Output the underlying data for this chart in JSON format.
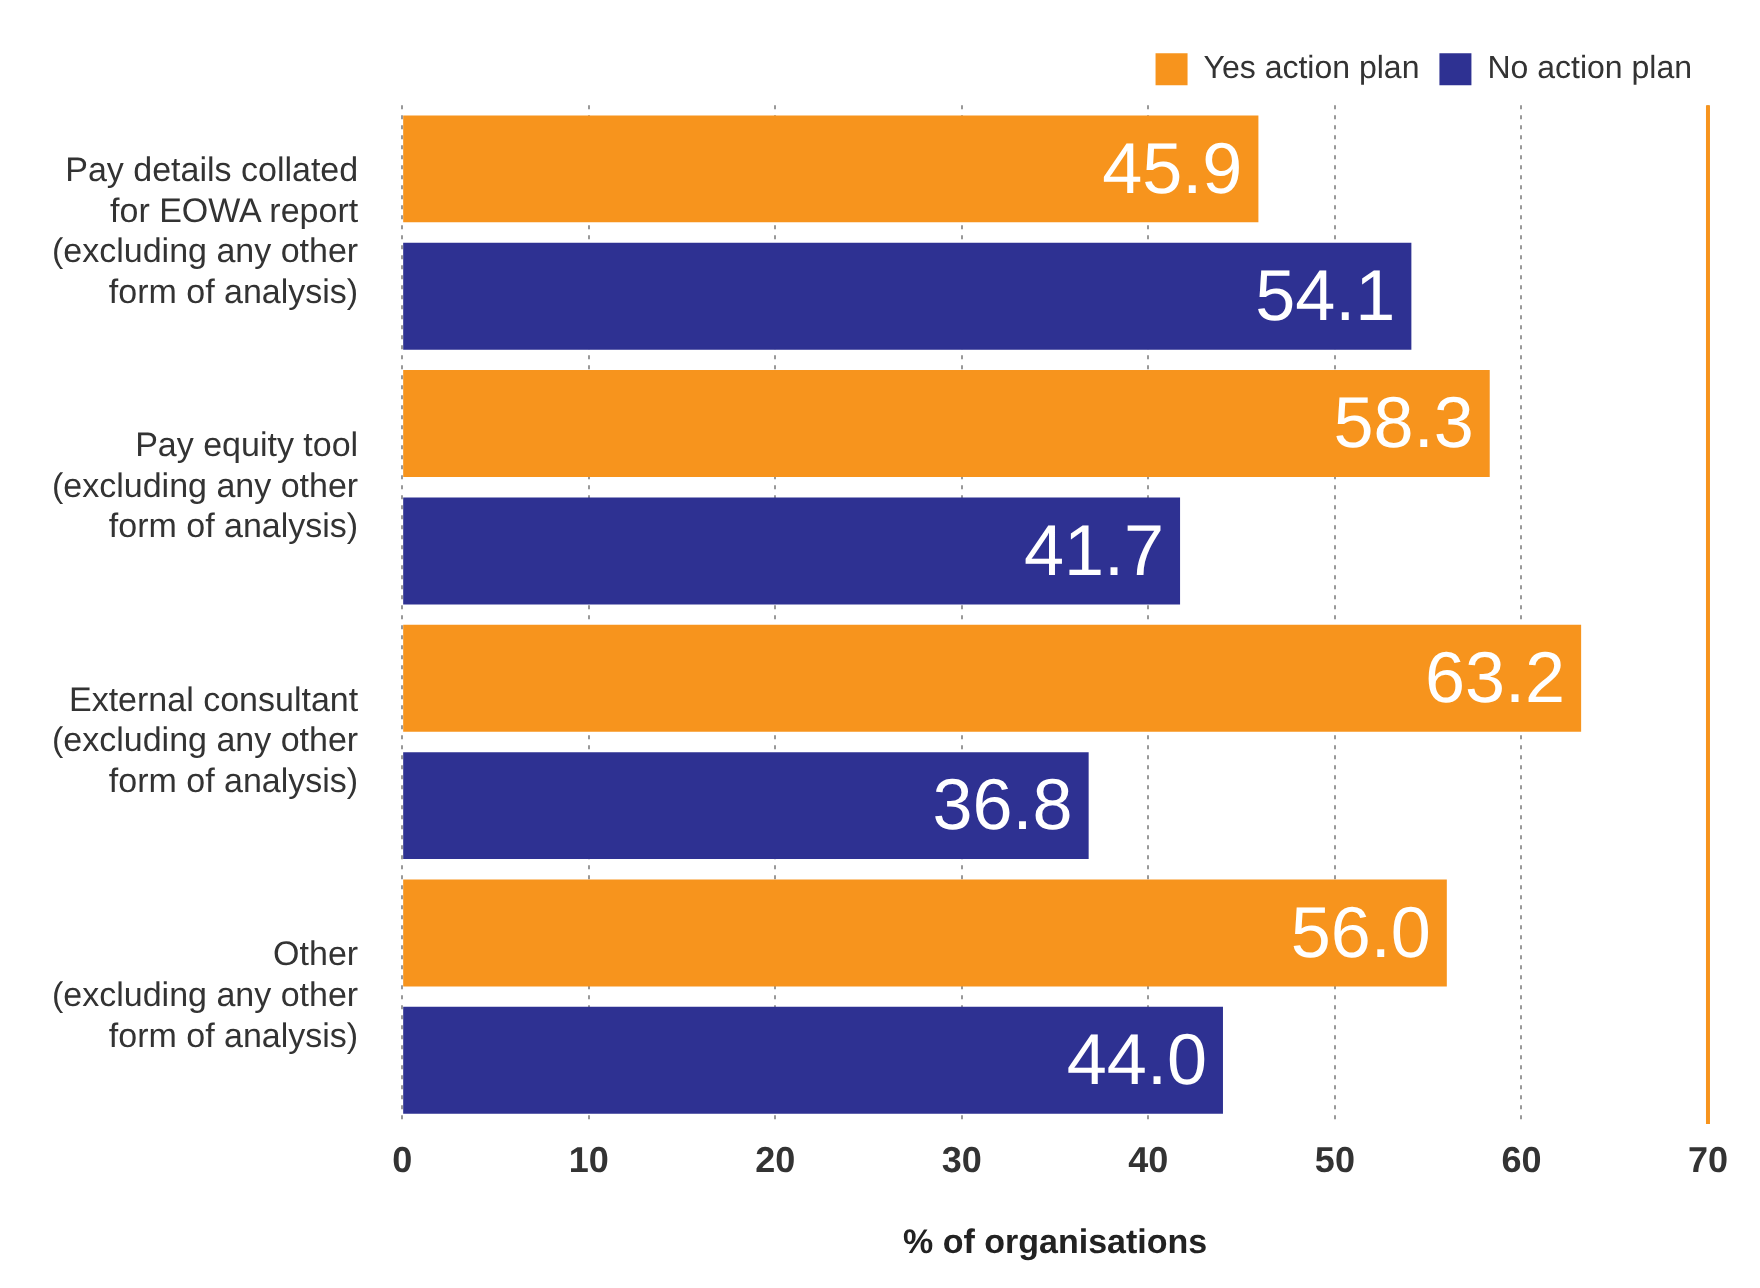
{
  "chart_data": {
    "type": "bar",
    "orientation": "horizontal",
    "categories": [
      "Pay details collated for EOWA report (excluding any other form of analysis)",
      "Pay equity tool (excluding any other form of analysis)",
      "External consultant (excluding any other form of analysis)",
      "Other (excluding any other form of analysis)"
    ],
    "series": [
      {
        "name": "Yes action plan",
        "color": "#f7941d",
        "values": [
          45.9,
          58.3,
          63.2,
          56.0
        ],
        "value_labels": [
          "45.9",
          "58.3",
          "63.2",
          "56.0"
        ]
      },
      {
        "name": "No action plan",
        "color": "#2e3192",
        "values": [
          54.1,
          41.7,
          36.8,
          44.0
        ],
        "value_labels": [
          "54.1",
          "41.7",
          "36.8",
          "44.0"
        ]
      }
    ],
    "xlim": [
      0,
      70
    ],
    "xticks": [
      0,
      10,
      20,
      30,
      40,
      50,
      60,
      70
    ],
    "xlabel": "% of organisations",
    "grid": "x",
    "legend": "top right",
    "ref_lines": [
      {
        "axis": "x",
        "value": 70,
        "color": "#f7941d"
      }
    ]
  }
}
